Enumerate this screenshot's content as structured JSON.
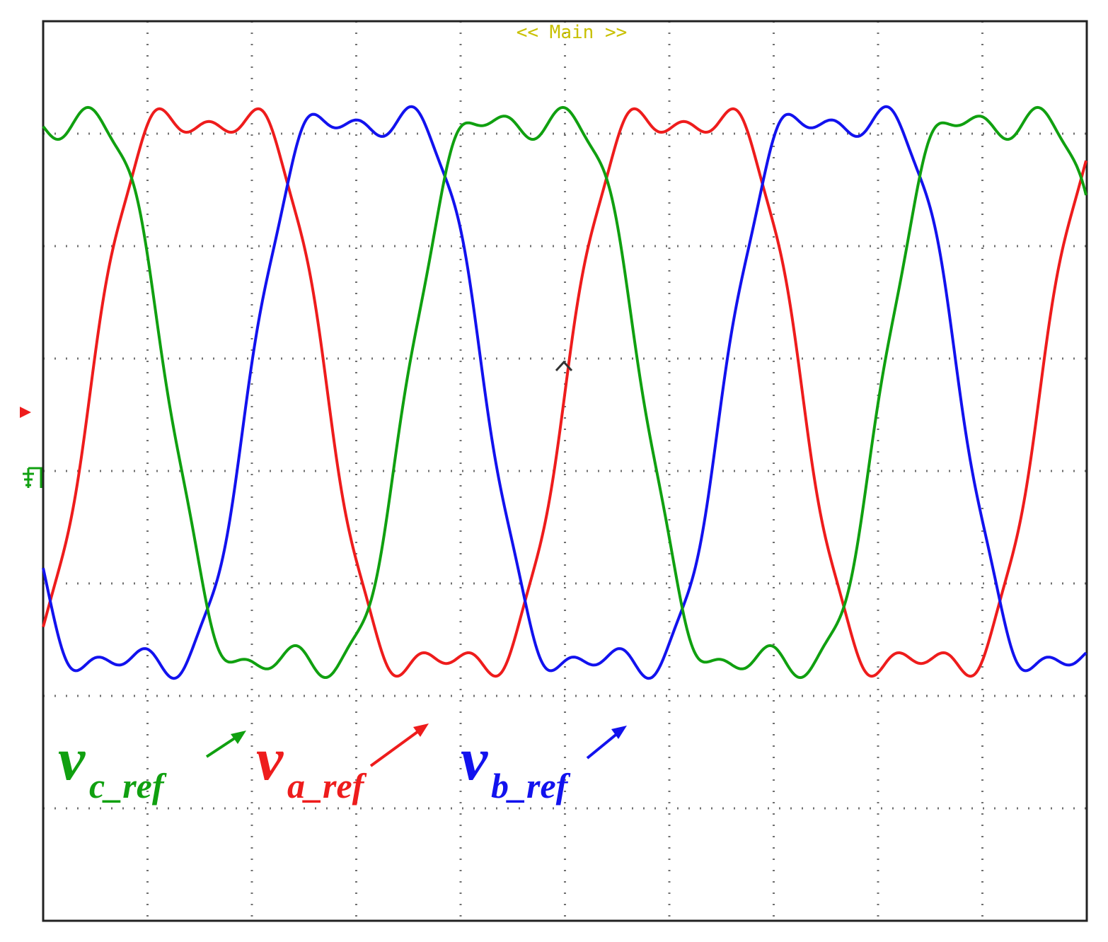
{
  "header": {
    "mode_label": "<< Main >>"
  },
  "colors": {
    "phase_a": "#ee1c1c",
    "phase_b": "#1212ee",
    "phase_c": "#10a010",
    "grid": "#707070",
    "frame": "#222222",
    "cursor": "#333333"
  },
  "labels": {
    "c": {
      "main": "v",
      "sub": "c_ref"
    },
    "a": {
      "main": "v",
      "sub": "a_ref"
    },
    "b": {
      "main": "v",
      "sub": "b_ref"
    }
  },
  "chart_data": {
    "type": "line",
    "title": "",
    "xlabel": "",
    "ylabel": "",
    "grid": true,
    "divisions": {
      "x": 10,
      "y": 8
    },
    "xlim": [
      0,
      10
    ],
    "ylim": [
      -4,
      4
    ],
    "series": [
      {
        "name": "v_a_ref",
        "color": "#ee1c1c",
        "peak_div": 2.55,
        "offset_div": 0.0,
        "phase_div": 5.0,
        "period_div": 4.55
      },
      {
        "name": "v_b_ref",
        "color": "#1212ee",
        "peak_div": 2.55,
        "offset_div": 0.0,
        "phase_div": 6.52,
        "period_div": 4.55
      },
      {
        "name": "v_c_ref",
        "color": "#10a010",
        "peak_div": 2.55,
        "offset_div": 0.0,
        "phase_div": 8.03,
        "period_div": 4.55
      }
    ]
  }
}
